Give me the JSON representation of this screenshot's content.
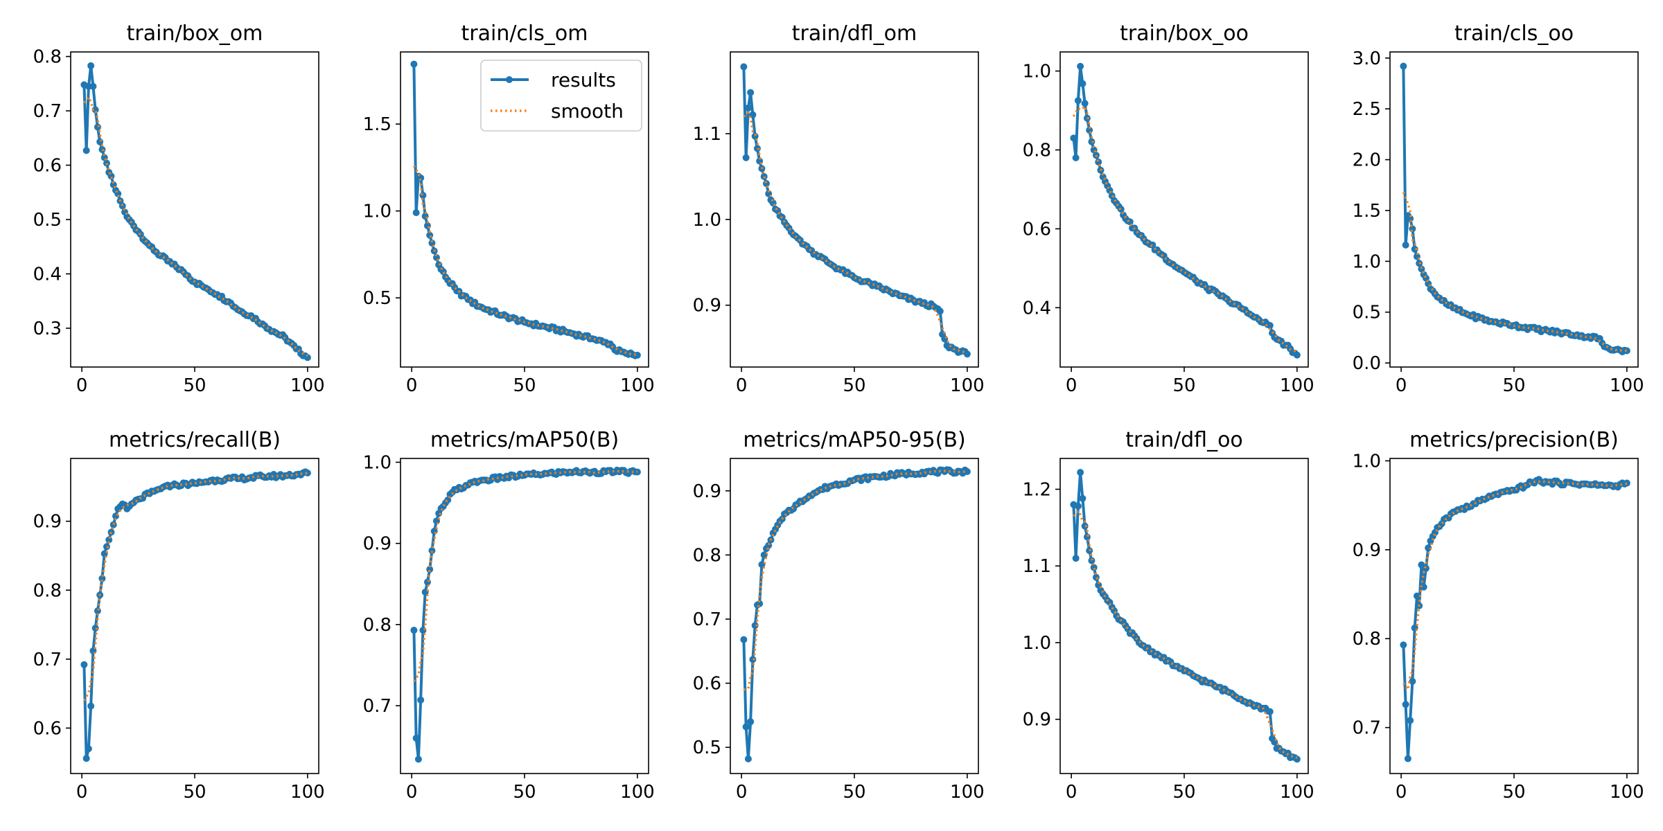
{
  "figure": {
    "colors": {
      "results": "#1f77b4",
      "smooth": "#ff7f0e",
      "frame": "#000000",
      "background": "#ffffff"
    },
    "legend": {
      "placement": "top-right of train/cls_om",
      "entries": [
        "results",
        "smooth"
      ]
    }
  },
  "chart_data": [
    {
      "type": "line",
      "title": "train/box_om",
      "xlim": [
        -4.95,
        104.95
      ],
      "ylim": [
        0.2286,
        0.8084
      ],
      "xticks": [
        0,
        50,
        100
      ],
      "yticks": [
        0.3,
        0.4,
        0.5,
        0.6,
        0.7,
        0.8
      ],
      "ytick_labels": [
        "0.3",
        "0.4",
        "0.5",
        "0.6",
        "0.7",
        "0.8"
      ],
      "anchors": [
        [
          1,
          0.748
        ],
        [
          2,
          0.627
        ],
        [
          3,
          0.745
        ],
        [
          4,
          0.783
        ],
        [
          5,
          0.745
        ],
        [
          6,
          0.702
        ],
        [
          8,
          0.643
        ],
        [
          10,
          0.614
        ],
        [
          14,
          0.564
        ],
        [
          18,
          0.525
        ],
        [
          20,
          0.505
        ],
        [
          25,
          0.478
        ],
        [
          30,
          0.452
        ],
        [
          35,
          0.433
        ],
        [
          40,
          0.418
        ],
        [
          45,
          0.404
        ],
        [
          50,
          0.385
        ],
        [
          55,
          0.374
        ],
        [
          60,
          0.362
        ],
        [
          65,
          0.349
        ],
        [
          70,
          0.332
        ],
        [
          75,
          0.323
        ],
        [
          80,
          0.308
        ],
        [
          85,
          0.294
        ],
        [
          90,
          0.283
        ],
        [
          95,
          0.262
        ],
        [
          100,
          0.246
        ]
      ],
      "smooth_start": 0.715,
      "series": [
        {
          "name": "results"
        },
        {
          "name": "smooth"
        }
      ]
    },
    {
      "type": "line",
      "title": "train/cls_om",
      "xlim": [
        -4.95,
        104.95
      ],
      "ylim": [
        0.102,
        1.915
      ],
      "xticks": [
        0,
        50,
        100
      ],
      "yticks": [
        0.5,
        1.0,
        1.5
      ],
      "ytick_labels": [
        "0.5",
        "1.0",
        "1.5"
      ],
      "anchors": [
        [
          1,
          1.845
        ],
        [
          2,
          0.99
        ],
        [
          3,
          1.2
        ],
        [
          4,
          1.19
        ],
        [
          5,
          1.09
        ],
        [
          6,
          0.97
        ],
        [
          8,
          0.86
        ],
        [
          10,
          0.77
        ],
        [
          12,
          0.69
        ],
        [
          15,
          0.62
        ],
        [
          20,
          0.54
        ],
        [
          25,
          0.49
        ],
        [
          30,
          0.45
        ],
        [
          40,
          0.4
        ],
        [
          50,
          0.36
        ],
        [
          60,
          0.33
        ],
        [
          70,
          0.3
        ],
        [
          80,
          0.265
        ],
        [
          85,
          0.245
        ],
        [
          88,
          0.235
        ],
        [
          90,
          0.2
        ],
        [
          95,
          0.18
        ],
        [
          100,
          0.17
        ]
      ],
      "smooth_start": 1.26,
      "series": [
        {
          "name": "results"
        },
        {
          "name": "smooth"
        }
      ]
    },
    {
      "type": "line",
      "title": "train/dfl_om",
      "xlim": [
        -4.95,
        104.95
      ],
      "ylim": [
        0.8279,
        1.1953
      ],
      "xticks": [
        0,
        50,
        100
      ],
      "yticks": [
        0.9,
        1.0,
        1.1
      ],
      "ytick_labels": [
        "0.9",
        "1.0",
        "1.1"
      ],
      "anchors": [
        [
          1,
          1.178
        ],
        [
          2,
          1.072
        ],
        [
          3,
          1.13
        ],
        [
          4,
          1.148
        ],
        [
          5,
          1.122
        ],
        [
          6,
          1.097
        ],
        [
          8,
          1.068
        ],
        [
          10,
          1.05
        ],
        [
          12,
          1.03
        ],
        [
          15,
          1.012
        ],
        [
          20,
          0.993
        ],
        [
          25,
          0.978
        ],
        [
          30,
          0.965
        ],
        [
          40,
          0.947
        ],
        [
          50,
          0.932
        ],
        [
          60,
          0.922
        ],
        [
          70,
          0.911
        ],
        [
          80,
          0.902
        ],
        [
          85,
          0.899
        ],
        [
          88,
          0.893
        ],
        [
          89,
          0.866
        ],
        [
          91,
          0.853
        ],
        [
          95,
          0.848
        ],
        [
          100,
          0.843
        ]
      ],
      "smooth_start": 1.12,
      "series": [
        {
          "name": "results"
        },
        {
          "name": "smooth"
        }
      ]
    },
    {
      "type": "line",
      "title": "train/box_oo",
      "xlim": [
        -4.95,
        104.95
      ],
      "ylim": [
        0.2496,
        1.0484
      ],
      "xticks": [
        0,
        50,
        100
      ],
      "yticks": [
        0.4,
        0.6,
        0.8,
        1.0
      ],
      "ytick_labels": [
        "0.4",
        "0.6",
        "0.8",
        "1.0"
      ],
      "anchors": [
        [
          1,
          0.83
        ],
        [
          2,
          0.78
        ],
        [
          3,
          0.925
        ],
        [
          4,
          1.012
        ],
        [
          5,
          0.968
        ],
        [
          6,
          0.918
        ],
        [
          8,
          0.85
        ],
        [
          10,
          0.8
        ],
        [
          15,
          0.72
        ],
        [
          20,
          0.665
        ],
        [
          25,
          0.62
        ],
        [
          30,
          0.585
        ],
        [
          35,
          0.56
        ],
        [
          40,
          0.535
        ],
        [
          45,
          0.51
        ],
        [
          50,
          0.49
        ],
        [
          55,
          0.47
        ],
        [
          60,
          0.45
        ],
        [
          65,
          0.435
        ],
        [
          70,
          0.415
        ],
        [
          75,
          0.4
        ],
        [
          80,
          0.38
        ],
        [
          85,
          0.362
        ],
        [
          88,
          0.355
        ],
        [
          90,
          0.325
        ],
        [
          95,
          0.305
        ],
        [
          100,
          0.28
        ]
      ],
      "smooth_start": 0.885,
      "series": [
        {
          "name": "results"
        },
        {
          "name": "smooth"
        }
      ]
    },
    {
      "type": "line",
      "title": "train/cls_oo",
      "xlim": [
        -4.95,
        104.95
      ],
      "ylim": [
        -0.04,
        3.06
      ],
      "xticks": [
        0,
        50,
        100
      ],
      "yticks": [
        0.0,
        0.5,
        1.0,
        1.5,
        2.0,
        2.5,
        3.0
      ],
      "ytick_labels": [
        "0.0",
        "0.5",
        "1.0",
        "1.5",
        "2.0",
        "2.5",
        "3.0"
      ],
      "anchors": [
        [
          1,
          2.92
        ],
        [
          2,
          1.16
        ],
        [
          3,
          1.45
        ],
        [
          4,
          1.42
        ],
        [
          5,
          1.32
        ],
        [
          6,
          1.12
        ],
        [
          8,
          0.98
        ],
        [
          10,
          0.87
        ],
        [
          12,
          0.78
        ],
        [
          15,
          0.68
        ],
        [
          20,
          0.58
        ],
        [
          25,
          0.52
        ],
        [
          30,
          0.47
        ],
        [
          40,
          0.41
        ],
        [
          50,
          0.37
        ],
        [
          60,
          0.33
        ],
        [
          70,
          0.3
        ],
        [
          80,
          0.27
        ],
        [
          88,
          0.24
        ],
        [
          90,
          0.16
        ],
        [
          95,
          0.13
        ],
        [
          100,
          0.12
        ]
      ],
      "smooth_start": 1.68,
      "series": [
        {
          "name": "results"
        },
        {
          "name": "smooth"
        }
      ]
    },
    {
      "type": "line",
      "title": "metrics/recall(B)",
      "xlim": [
        -4.95,
        104.95
      ],
      "ylim": [
        0.5341,
        0.9911
      ],
      "xticks": [
        0,
        50,
        100
      ],
      "yticks": [
        0.6,
        0.7,
        0.8,
        0.9
      ],
      "ytick_labels": [
        "0.6",
        "0.7",
        "0.8",
        "0.9"
      ],
      "anchors": [
        [
          1,
          0.692
        ],
        [
          2,
          0.556
        ],
        [
          3,
          0.57
        ],
        [
          4,
          0.632
        ],
        [
          5,
          0.712
        ],
        [
          6,
          0.745
        ],
        [
          7,
          0.77
        ],
        [
          8,
          0.793
        ],
        [
          9,
          0.817
        ],
        [
          10,
          0.853
        ],
        [
          12,
          0.873
        ],
        [
          14,
          0.895
        ],
        [
          16,
          0.918
        ],
        [
          18,
          0.925
        ],
        [
          20,
          0.918
        ],
        [
          25,
          0.932
        ],
        [
          30,
          0.94
        ],
        [
          35,
          0.947
        ],
        [
          40,
          0.952
        ],
        [
          50,
          0.955
        ],
        [
          60,
          0.96
        ],
        [
          70,
          0.962
        ],
        [
          80,
          0.965
        ],
        [
          90,
          0.966
        ],
        [
          100,
          0.97
        ]
      ],
      "smooth_start": 0.64,
      "series": [
        {
          "name": "results"
        },
        {
          "name": "smooth"
        }
      ]
    },
    {
      "type": "line",
      "title": "metrics/mAP50(B)",
      "xlim": [
        -4.95,
        104.95
      ],
      "ylim": [
        0.6164,
        1.0047
      ],
      "xticks": [
        0,
        50,
        100
      ],
      "yticks": [
        0.7,
        0.8,
        0.9,
        1.0
      ],
      "ytick_labels": [
        "0.7",
        "0.8",
        "0.9",
        "1.0"
      ],
      "anchors": [
        [
          1,
          0.793
        ],
        [
          2,
          0.66
        ],
        [
          3,
          0.634
        ],
        [
          4,
          0.707
        ],
        [
          5,
          0.793
        ],
        [
          6,
          0.84
        ],
        [
          8,
          0.868
        ],
        [
          10,
          0.915
        ],
        [
          12,
          0.937
        ],
        [
          15,
          0.95
        ],
        [
          18,
          0.963
        ],
        [
          20,
          0.966
        ],
        [
          25,
          0.972
        ],
        [
          30,
          0.977
        ],
        [
          40,
          0.981
        ],
        [
          50,
          0.984
        ],
        [
          60,
          0.986
        ],
        [
          70,
          0.988
        ],
        [
          80,
          0.988
        ],
        [
          90,
          0.988
        ],
        [
          100,
          0.988
        ]
      ],
      "smooth_start": 0.73,
      "series": [
        {
          "name": "results"
        },
        {
          "name": "smooth"
        }
      ]
    },
    {
      "type": "line",
      "title": "metrics/mAP50-95(B)",
      "xlim": [
        -4.95,
        104.95
      ],
      "ylim": [
        0.4592,
        0.9505
      ],
      "xticks": [
        0,
        50,
        100
      ],
      "yticks": [
        0.5,
        0.6,
        0.7,
        0.8,
        0.9
      ],
      "ytick_labels": [
        "0.5",
        "0.6",
        "0.7",
        "0.8",
        "0.9"
      ],
      "anchors": [
        [
          1,
          0.668
        ],
        [
          2,
          0.532
        ],
        [
          3,
          0.482
        ],
        [
          4,
          0.54
        ],
        [
          5,
          0.637
        ],
        [
          6,
          0.69
        ],
        [
          7,
          0.722
        ],
        [
          8,
          0.724
        ],
        [
          9,
          0.785
        ],
        [
          10,
          0.8
        ],
        [
          12,
          0.815
        ],
        [
          15,
          0.84
        ],
        [
          18,
          0.856
        ],
        [
          20,
          0.866
        ],
        [
          25,
          0.88
        ],
        [
          30,
          0.892
        ],
        [
          35,
          0.902
        ],
        [
          40,
          0.908
        ],
        [
          50,
          0.917
        ],
        [
          60,
          0.922
        ],
        [
          70,
          0.926
        ],
        [
          80,
          0.929
        ],
        [
          90,
          0.93
        ],
        [
          100,
          0.93
        ]
      ],
      "smooth_start": 0.59,
      "series": [
        {
          "name": "results"
        },
        {
          "name": "smooth"
        }
      ]
    },
    {
      "type": "line",
      "title": "train/dfl_oo",
      "xlim": [
        -4.95,
        104.95
      ],
      "ylim": [
        0.8293,
        1.2402
      ],
      "xticks": [
        0,
        50,
        100
      ],
      "yticks": [
        0.9,
        1.0,
        1.1,
        1.2
      ],
      "ytick_labels": [
        "0.9",
        "1.0",
        "1.1",
        "1.2"
      ],
      "anchors": [
        [
          1,
          1.18
        ],
        [
          2,
          1.11
        ],
        [
          3,
          1.178
        ],
        [
          4,
          1.222
        ],
        [
          5,
          1.188
        ],
        [
          6,
          1.152
        ],
        [
          8,
          1.12
        ],
        [
          10,
          1.098
        ],
        [
          12,
          1.075
        ],
        [
          15,
          1.06
        ],
        [
          20,
          1.035
        ],
        [
          25,
          1.018
        ],
        [
          30,
          1.0
        ],
        [
          40,
          0.98
        ],
        [
          50,
          0.963
        ],
        [
          60,
          0.948
        ],
        [
          70,
          0.935
        ],
        [
          80,
          0.92
        ],
        [
          88,
          0.91
        ],
        [
          89,
          0.875
        ],
        [
          91,
          0.862
        ],
        [
          95,
          0.855
        ],
        [
          100,
          0.848
        ]
      ],
      "smooth_start": 1.165,
      "series": [
        {
          "name": "results"
        },
        {
          "name": "smooth"
        }
      ]
    },
    {
      "type": "line",
      "title": "metrics/precision(B)",
      "xlim": [
        -4.95,
        104.95
      ],
      "ylim": [
        0.6483,
        1.0027
      ],
      "xticks": [
        0,
        50,
        100
      ],
      "yticks": [
        0.7,
        0.8,
        0.9,
        1.0
      ],
      "ytick_labels": [
        "0.7",
        "0.8",
        "0.9",
        "1.0"
      ],
      "anchors": [
        [
          1,
          0.793
        ],
        [
          2,
          0.726
        ],
        [
          3,
          0.665
        ],
        [
          4,
          0.708
        ],
        [
          5,
          0.752
        ],
        [
          6,
          0.812
        ],
        [
          7,
          0.848
        ],
        [
          8,
          0.837
        ],
        [
          9,
          0.883
        ],
        [
          10,
          0.858
        ],
        [
          12,
          0.902
        ],
        [
          14,
          0.915
        ],
        [
          16,
          0.925
        ],
        [
          20,
          0.936
        ],
        [
          25,
          0.945
        ],
        [
          30,
          0.948
        ],
        [
          35,
          0.955
        ],
        [
          40,
          0.96
        ],
        [
          50,
          0.967
        ],
        [
          55,
          0.972
        ],
        [
          60,
          0.978
        ],
        [
          65,
          0.976
        ],
        [
          70,
          0.975
        ],
        [
          80,
          0.974
        ],
        [
          90,
          0.972
        ],
        [
          95,
          0.972
        ],
        [
          100,
          0.975
        ]
      ],
      "smooth_start": 0.75,
      "series": [
        {
          "name": "results"
        },
        {
          "name": "smooth"
        }
      ]
    }
  ]
}
